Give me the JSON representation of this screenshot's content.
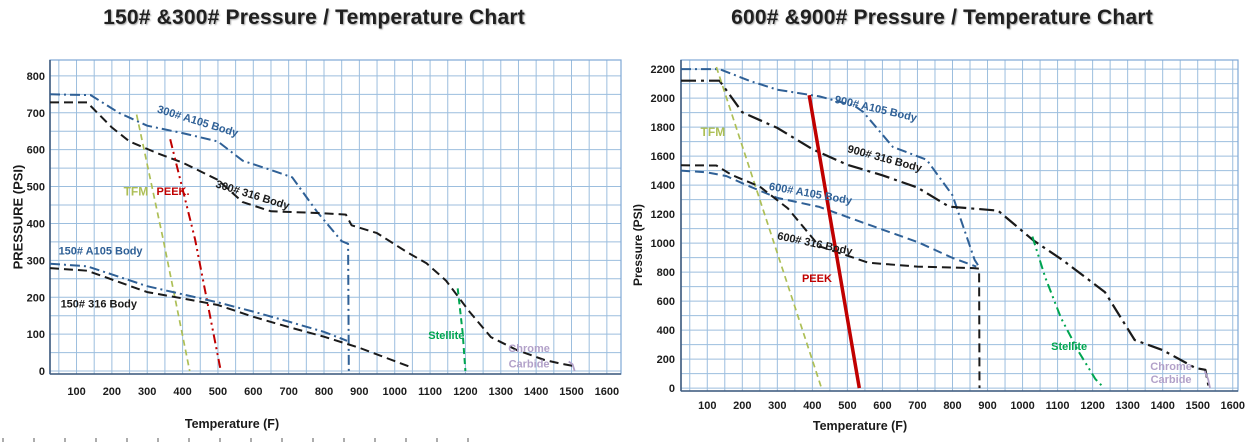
{
  "colors": {
    "grid": "#9cbede",
    "border": "#7fa8d6",
    "axis": "#3f5a7d",
    "tick": "#1c1c1c"
  },
  "chart_data": [
    {
      "type": "line",
      "title": "150# &300# Pressure / Temperature Chart",
      "xlabel": "Temperature (F)",
      "ylabel": "PRESSURE (PSI)",
      "xlim": [
        25,
        1640
      ],
      "ylim": [
        -8,
        843
      ],
      "xticks": [
        100,
        200,
        300,
        400,
        500,
        600,
        700,
        800,
        900,
        1000,
        1100,
        1200,
        1300,
        1400,
        1500,
        1600
      ],
      "yticks": [
        0,
        100,
        200,
        300,
        400,
        500,
        600,
        700,
        800
      ],
      "x_minor_step": 50,
      "y_minor_step": 50,
      "grid": true,
      "legend": "inline-labels",
      "series": [
        {
          "name": "300# A105 Body",
          "color": "#2f6096",
          "dash": "dashdot",
          "width": 2,
          "points": [
            [
              25,
              750
            ],
            [
              140,
              748
            ],
            [
              220,
              700
            ],
            [
              300,
              665
            ],
            [
              400,
              645
            ],
            [
              500,
              622
            ],
            [
              570,
              570
            ],
            [
              640,
              548
            ],
            [
              710,
              525
            ],
            [
              780,
              432
            ],
            [
              850,
              352
            ],
            [
              868,
              345
            ],
            [
              870,
              0
            ]
          ]
        },
        {
          "name": "300# 316 Body",
          "color": "#1a1a1a",
          "dash": "dash",
          "width": 2,
          "points": [
            [
              25,
              728
            ],
            [
              130,
              728
            ],
            [
              200,
              660
            ],
            [
              250,
              622
            ],
            [
              330,
              590
            ],
            [
              400,
              565
            ],
            [
              500,
              518
            ],
            [
              570,
              458
            ],
            [
              650,
              433
            ],
            [
              790,
              428
            ],
            [
              862,
              424
            ],
            [
              878,
              395
            ],
            [
              950,
              374
            ],
            [
              1035,
              322
            ],
            [
              1090,
              292
            ],
            [
              1145,
              245
            ],
            [
              1212,
              160
            ],
            [
              1272,
              92
            ],
            [
              1345,
              57
            ],
            [
              1424,
              30
            ],
            [
              1470,
              20
            ],
            [
              1505,
              14
            ]
          ]
        },
        {
          "name": "TFM",
          "color": "#adbf56",
          "dash": "dash-short",
          "width": 1.7,
          "points": [
            [
              270,
              695
            ],
            [
              345,
              358
            ],
            [
              420,
              0
            ]
          ]
        },
        {
          "name": "PEEK.",
          "color": "#c00000",
          "dash": "dashdotdot",
          "width": 2,
          "points": [
            [
              365,
              628
            ],
            [
              435,
              358
            ],
            [
              508,
              0
            ]
          ]
        },
        {
          "name": "150# A105 Body",
          "color": "#2f6096",
          "dash": "dashdot",
          "width": 2,
          "points": [
            [
              25,
              291
            ],
            [
              130,
              284
            ],
            [
              200,
              262
            ],
            [
              300,
              230
            ],
            [
              400,
              208
            ],
            [
              500,
              186
            ],
            [
              600,
              161
            ],
            [
              700,
              134
            ],
            [
              800,
              106
            ],
            [
              865,
              82
            ]
          ]
        },
        {
          "name": "150# 316 Body",
          "color": "#1a1a1a",
          "dash": "dash",
          "width": 2,
          "points": [
            [
              25,
              279
            ],
            [
              130,
              272
            ],
            [
              200,
              248
            ],
            [
              300,
              214
            ],
            [
              400,
              197
            ],
            [
              500,
              179
            ],
            [
              600,
              147
            ],
            [
              700,
              119
            ],
            [
              800,
              93
            ],
            [
              900,
              63
            ],
            [
              1000,
              27
            ],
            [
              1048,
              10
            ]
          ]
        },
        {
          "name": "Stellite",
          "color": "#00a550",
          "dash": "dash-short",
          "width": 2,
          "points": [
            [
              1178,
              224
            ],
            [
              1192,
              105
            ],
            [
              1200,
              0
            ]
          ]
        },
        {
          "name": "Chrome Carbide",
          "color": "#b2a1c9",
          "dash": "solid",
          "width": 1.8,
          "points": [
            [
              1492,
              26
            ],
            [
              1503,
              18
            ],
            [
              1509,
              0
            ]
          ]
        }
      ],
      "labels": [
        {
          "text": "300# A105 Body",
          "x": 440,
          "y": 668,
          "color": "#2f6096",
          "rotate": 17,
          "size": 11
        },
        {
          "text": "300# 316 Body",
          "x": 595,
          "y": 468,
          "color": "#1a1a1a",
          "rotate": 17,
          "size": 11
        },
        {
          "text": "TFM",
          "x": 268,
          "y": 476,
          "color": "#adbf56",
          "rotate": 0,
          "size": 12
        },
        {
          "text": "PEEK.",
          "x": 373,
          "y": 477,
          "color": "#c00000",
          "rotate": 0,
          "size": 11
        },
        {
          "text": "150# A105 Body",
          "x": 168,
          "y": 316,
          "color": "#2f6096",
          "rotate": 0,
          "size": 11
        },
        {
          "text": "150# 316 Body",
          "x": 163,
          "y": 172,
          "color": "#1a1a1a",
          "rotate": 0,
          "size": 11
        },
        {
          "text": "Stellite",
          "x": 1146,
          "y": 87,
          "color": "#00a550",
          "rotate": 0,
          "size": 11
        },
        {
          "text": "Chrome",
          "x": 1380,
          "y": 51,
          "color": "#b2a1c9",
          "rotate": 0,
          "size": 11
        },
        {
          "text": "Carbide",
          "x": 1380,
          "y": 9,
          "color": "#b2a1c9",
          "rotate": 0,
          "size": 11
        }
      ]
    },
    {
      "type": "line",
      "title": "600# &900# Pressure / Temperature Chart",
      "xlabel": "Temperature (F)",
      "ylabel": "Pressure (PSI)",
      "xlim": [
        25,
        1615
      ],
      "ylim": [
        -20,
        2263
      ],
      "xticks": [
        100,
        200,
        300,
        400,
        500,
        600,
        700,
        800,
        900,
        1000,
        1100,
        1200,
        1300,
        1400,
        1500,
        1600
      ],
      "yticks": [
        0,
        200,
        400,
        600,
        800,
        1000,
        1200,
        1400,
        1600,
        1800,
        2000,
        2200
      ],
      "x_minor_step": 50,
      "y_minor_step": 100,
      "grid": true,
      "legend": "inline-labels",
      "series": [
        {
          "name": "900# A105 Body",
          "color": "#2f6096",
          "dash": "dashdot",
          "width": 2,
          "points": [
            [
              25,
              2200
            ],
            [
              135,
              2200
            ],
            [
              220,
              2120
            ],
            [
              300,
              2058
            ],
            [
              420,
              2012
            ],
            [
              520,
              1948
            ],
            [
              545,
              1905
            ],
            [
              630,
              1663
            ],
            [
              726,
              1575
            ],
            [
              800,
              1330
            ],
            [
              863,
              885
            ],
            [
              877,
              832
            ]
          ]
        },
        {
          "name": "900# 316 Body",
          "color": "#1a1a1a",
          "dash": "longdashdot",
          "width": 2.2,
          "points": [
            [
              25,
              2120
            ],
            [
              135,
              2120
            ],
            [
              200,
              1902
            ],
            [
              300,
              1795
            ],
            [
              400,
              1648
            ],
            [
              500,
              1540
            ],
            [
              600,
              1468
            ],
            [
              700,
              1383
            ],
            [
              790,
              1252
            ],
            [
              930,
              1224
            ],
            [
              1030,
              1020
            ],
            [
              1115,
              882
            ],
            [
              1235,
              662
            ],
            [
              1320,
              332
            ],
            [
              1400,
              262
            ],
            [
              1494,
              138
            ],
            [
              1522,
              126
            ],
            [
              1532,
              0
            ]
          ]
        },
        {
          "name": "TFM",
          "color": "#adbf56",
          "dash": "dash-short",
          "width": 1.7,
          "points": [
            [
              126,
              2215
            ],
            [
              426,
              0
            ]
          ]
        },
        {
          "name": "600# A105 Body",
          "color": "#2f6096",
          "dash": "dash",
          "width": 2,
          "points": [
            [
              25,
              1500
            ],
            [
              100,
              1488
            ],
            [
              155,
              1462
            ],
            [
              212,
              1400
            ],
            [
              300,
              1312
            ],
            [
              420,
              1250
            ],
            [
              560,
              1128
            ],
            [
              700,
              1008
            ],
            [
              800,
              898
            ],
            [
              868,
              838
            ]
          ]
        },
        {
          "name": "600# 316 Body",
          "color": "#1a1a1a",
          "dash": "dash",
          "width": 2,
          "points": [
            [
              25,
              1537
            ],
            [
              126,
              1535
            ],
            [
              170,
              1470
            ],
            [
              250,
              1390
            ],
            [
              330,
              1240
            ],
            [
              420,
              978
            ],
            [
              560,
              865
            ],
            [
              700,
              838
            ],
            [
              860,
              828
            ],
            [
              876,
              824
            ],
            [
              877,
              0
            ]
          ]
        },
        {
          "name": "PEEK",
          "color": "#c00000",
          "dash": "solid",
          "width": 3.5,
          "points": [
            [
              391,
              2020
            ],
            [
              534,
              0
            ]
          ]
        },
        {
          "name": "Stellite",
          "color": "#00a550",
          "dash": "dashdotdot",
          "width": 2,
          "points": [
            [
              1028,
              1045
            ],
            [
              1065,
              762
            ],
            [
              1110,
              482
            ],
            [
              1160,
              252
            ],
            [
              1208,
              62
            ],
            [
              1233,
              0
            ]
          ]
        },
        {
          "name": "Chrome Carbide",
          "color": "#b2a1c9",
          "dash": "solid",
          "width": 1.8,
          "points": [
            [
              1520,
              118
            ],
            [
              1530,
              60
            ],
            [
              1535,
              0
            ]
          ]
        }
      ],
      "labels": [
        {
          "text": "900# A105 Body",
          "x": 579,
          "y": 1904,
          "color": "#2f6096",
          "rotate": 13,
          "size": 11
        },
        {
          "text": "TFM",
          "x": 116,
          "y": 1740,
          "color": "#adbf56",
          "rotate": 0,
          "size": 12
        },
        {
          "text": "900# 316 Body",
          "x": 604,
          "y": 1560,
          "color": "#1a1a1a",
          "rotate": 15,
          "size": 11
        },
        {
          "text": "600# A105 Body",
          "x": 393,
          "y": 1318,
          "color": "#2f6096",
          "rotate": 10,
          "size": 11
        },
        {
          "text": "600# 316  Body",
          "x": 405,
          "y": 973,
          "color": "#1a1a1a",
          "rotate": 12,
          "size": 11
        },
        {
          "text": "PEEK",
          "x": 413,
          "y": 731,
          "color": "#c00000",
          "rotate": 0,
          "size": 11
        },
        {
          "text": "Stellite",
          "x": 1133,
          "y": 262,
          "color": "#00a550",
          "rotate": 0,
          "size": 11
        },
        {
          "text": "Chrome",
          "x": 1424,
          "y": 124,
          "color": "#b2a1c9",
          "rotate": 0,
          "size": 11
        },
        {
          "text": "Carbide",
          "x": 1424,
          "y": 34,
          "color": "#b2a1c9",
          "rotate": 0,
          "size": 11
        }
      ]
    }
  ]
}
